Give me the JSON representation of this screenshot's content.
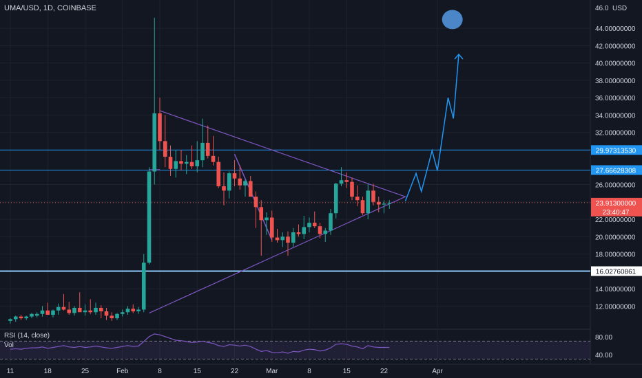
{
  "symbol": "UMA/USD, 1D, COINBASE",
  "currency": "USD",
  "rsi_label": "RSI (14, close)",
  "vol_label": "Vol",
  "colors": {
    "up": "#26a69a",
    "down": "#ef5350",
    "bg": "#131722",
    "grid": "#1e222d",
    "level": "#2196f3",
    "support": "#90caf9",
    "triangle": "#7e57c2",
    "projection": "#2196f3",
    "rsi": "#7e57c2"
  },
  "chart_data": {
    "type": "candlestick",
    "ylim": [
      9.5,
      46.3
    ],
    "y_ticks": [
      "12.00000000",
      "14.00000000",
      "18.00000000",
      "20.00000000",
      "22.00000000",
      "24.00000000",
      "26.00000000",
      "32.00000000",
      "34.00000000",
      "36.00000000",
      "38.00000000",
      "40.00000000",
      "42.00000000",
      "44.00000000"
    ],
    "y_top_label": "46.0",
    "x_ticks": [
      "11",
      "18",
      "25",
      "Feb",
      "8",
      "15",
      "22",
      "Mar",
      "8",
      "15",
      "22",
      "Apr"
    ],
    "x_tick_days": [
      0,
      7,
      14,
      21,
      28,
      35,
      42,
      49,
      56,
      63,
      70,
      80
    ],
    "levels": [
      {
        "label": "29.97313530",
        "value": 29.9731353
      },
      {
        "label": "27.66628308",
        "value": 27.66628308
      }
    ],
    "support": {
      "label": "16.02760861",
      "value": 16.02760861
    },
    "last_price": {
      "label": "23.91300000",
      "countdown": "23:40:47",
      "value": 23.913
    },
    "candles": [
      [
        0,
        10.3,
        10.6,
        10.0,
        10.5
      ],
      [
        1,
        10.5,
        10.9,
        10.2,
        10.8
      ],
      [
        2,
        10.8,
        11.0,
        10.4,
        10.6
      ],
      [
        3,
        10.6,
        10.9,
        10.4,
        10.8
      ],
      [
        4,
        10.8,
        11.2,
        10.6,
        11.1
      ],
      [
        5,
        10.9,
        11.3,
        10.7,
        11.1
      ],
      [
        6,
        11.1,
        12.0,
        10.8,
        11.5
      ],
      [
        7,
        11.5,
        12.4,
        11.0,
        11.0
      ],
      [
        8,
        11.0,
        11.6,
        10.7,
        11.5
      ],
      [
        9,
        11.5,
        12.3,
        11.0,
        11.9
      ],
      [
        10,
        11.9,
        13.4,
        11.5,
        11.6
      ],
      [
        11,
        11.6,
        12.5,
        11.0,
        11.2
      ],
      [
        12,
        11.2,
        12.0,
        10.9,
        11.8
      ],
      [
        13,
        11.8,
        13.6,
        11.4,
        11.3
      ],
      [
        14,
        11.3,
        12.2,
        10.9,
        11.5
      ],
      [
        15,
        11.5,
        12.8,
        11.1,
        11.3
      ],
      [
        16,
        11.3,
        12.4,
        11.0,
        11.8
      ],
      [
        17,
        11.8,
        12.1,
        10.6,
        11.4
      ],
      [
        18,
        11.4,
        11.8,
        10.4,
        10.9
      ],
      [
        19,
        10.9,
        11.3,
        10.3,
        10.6
      ],
      [
        20,
        10.6,
        11.2,
        10.4,
        11.1
      ],
      [
        21,
        11.1,
        11.6,
        10.8,
        11.3
      ],
      [
        22,
        11.3,
        12.0,
        11.0,
        11.7
      ],
      [
        23,
        11.7,
        12.2,
        11.2,
        11.4
      ],
      [
        24,
        11.4,
        11.9,
        11.1,
        11.6
      ],
      [
        25,
        11.6,
        18.0,
        11.3,
        17.0
      ],
      [
        26,
        17.0,
        28.0,
        16.8,
        27.5
      ],
      [
        27,
        27.5,
        45.2,
        26.0,
        34.2
      ],
      [
        28,
        34.2,
        36.0,
        30.0,
        31.0
      ],
      [
        29,
        31.0,
        34.0,
        28.0,
        29.2
      ],
      [
        30,
        29.2,
        30.5,
        27.0,
        27.8
      ],
      [
        31,
        27.8,
        30.0,
        26.8,
        28.7
      ],
      [
        32,
        28.7,
        30.0,
        27.6,
        28.4
      ],
      [
        33,
        28.4,
        29.4,
        27.2,
        28.6
      ],
      [
        34,
        28.6,
        30.5,
        27.8,
        28.1
      ],
      [
        35,
        28.1,
        31.0,
        27.4,
        28.8
      ],
      [
        36,
        28.8,
        33.6,
        28.0,
        30.8
      ],
      [
        37,
        30.8,
        32.8,
        29.0,
        29.3
      ],
      [
        38,
        29.3,
        31.6,
        28.2,
        28.6
      ],
      [
        39,
        28.6,
        29.2,
        25.6,
        25.8
      ],
      [
        40,
        25.8,
        27.4,
        23.6,
        25.3
      ],
      [
        41,
        25.3,
        27.5,
        24.4,
        27.3
      ],
      [
        42,
        27.3,
        28.8,
        25.8,
        26.7
      ],
      [
        43,
        26.7,
        28.2,
        25.4,
        25.9
      ],
      [
        44,
        25.9,
        26.6,
        24.6,
        26.4
      ],
      [
        45,
        26.4,
        27.0,
        24.6,
        24.6
      ],
      [
        46,
        24.6,
        25.2,
        21.0,
        23.4
      ],
      [
        47,
        23.4,
        24.2,
        17.8,
        21.9
      ],
      [
        48,
        21.9,
        22.8,
        20.2,
        22.2
      ],
      [
        49,
        22.2,
        23.0,
        19.4,
        19.9
      ],
      [
        50,
        19.9,
        20.9,
        19.3,
        19.6
      ],
      [
        51,
        19.6,
        20.5,
        18.8,
        20.0
      ],
      [
        52,
        20.0,
        20.6,
        17.8,
        19.3
      ],
      [
        53,
        19.3,
        21.0,
        18.8,
        20.5
      ],
      [
        54,
        20.5,
        21.4,
        20.0,
        20.3
      ],
      [
        55,
        20.3,
        22.4,
        19.7,
        21.1
      ],
      [
        56,
        21.1,
        22.2,
        20.5,
        21.6
      ],
      [
        57,
        21.6,
        22.9,
        21.0,
        21.2
      ],
      [
        58,
        21.2,
        21.6,
        19.8,
        20.3
      ],
      [
        59,
        20.3,
        21.0,
        19.4,
        20.7
      ],
      [
        60,
        20.7,
        23.2,
        20.2,
        22.7
      ],
      [
        61,
        22.7,
        26.2,
        22.1,
        26.1
      ],
      [
        62,
        26.1,
        28.0,
        25.8,
        26.5
      ],
      [
        63,
        26.5,
        27.4,
        25.6,
        26.3
      ],
      [
        64,
        26.3,
        26.8,
        24.2,
        24.6
      ],
      [
        65,
        24.6,
        25.9,
        23.5,
        24.2
      ],
      [
        66,
        24.2,
        24.6,
        22.5,
        22.7
      ],
      [
        67,
        22.7,
        26.1,
        22.0,
        25.3
      ],
      [
        68,
        25.3,
        26.1,
        23.6,
        24.0
      ],
      [
        69,
        24.0,
        24.6,
        22.8,
        23.7
      ],
      [
        70,
        23.7,
        24.2,
        22.7,
        23.8
      ],
      [
        71,
        23.8,
        24.2,
        23.2,
        23.9
      ]
    ],
    "triangle": [
      [
        28,
        34.5
      ],
      [
        74,
        24.6
      ],
      [
        26,
        11.2
      ]
    ],
    "pattern_lines": [
      [
        [
          42,
          29.5
        ],
        [
          49,
          19.6
        ]
      ],
      [
        [
          26,
          27.7
        ],
        [
          28,
          27.7
        ]
      ]
    ],
    "projection": [
      [
        74,
        24.1
      ],
      [
        76,
        27.3
      ],
      [
        77,
        25.2
      ],
      [
        79,
        29.9
      ],
      [
        80,
        27.6
      ],
      [
        82,
        36.0
      ],
      [
        83,
        33.6
      ],
      [
        84,
        41.0
      ]
    ],
    "target_circle": [
      82.8,
      45.0
    ],
    "rsi": {
      "ylim": [
        20,
        95
      ],
      "ticks": [
        "80.00",
        "40.00"
      ],
      "upper": 70,
      "lower": 30,
      "values": [
        52,
        53,
        52,
        54,
        55,
        55,
        57,
        54,
        56,
        58,
        60,
        57,
        56,
        58,
        56,
        57,
        59,
        57,
        55,
        54,
        56,
        58,
        60,
        58,
        59,
        69,
        80,
        86,
        84,
        80,
        76,
        72,
        71,
        69,
        67,
        68,
        70,
        67,
        65,
        60,
        58,
        62,
        61,
        59,
        61,
        58,
        52,
        47,
        49,
        45,
        44,
        46,
        43,
        47,
        46,
        50,
        52,
        51,
        48,
        50,
        55,
        63,
        64,
        63,
        59,
        57,
        53,
        60,
        57,
        56,
        56,
        56
      ]
    }
  }
}
